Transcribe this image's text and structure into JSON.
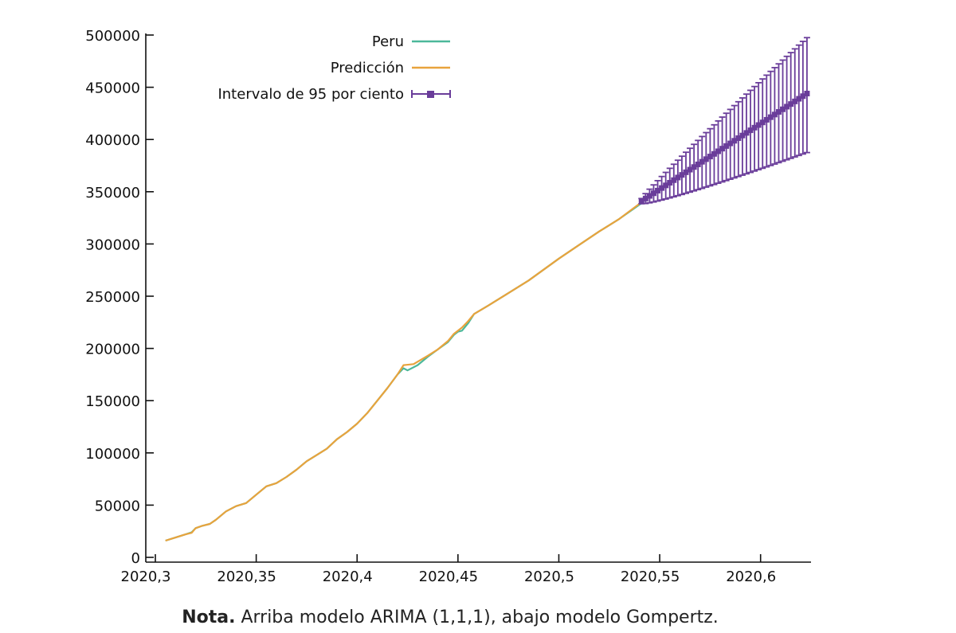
{
  "chart_data": {
    "type": "line",
    "title": "",
    "xlabel": "",
    "ylabel": "",
    "xlim": [
      2020.3,
      2020.625
    ],
    "ylim": [
      0,
      500000
    ],
    "x_ticks": [
      2020.3,
      2020.35,
      2020.4,
      2020.45,
      2020.5,
      2020.55,
      2020.6
    ],
    "x_tick_labels": [
      "2020,3",
      "2020,35",
      "2020,4",
      "2020,45",
      "2020,5",
      "2020,55",
      "2020,6"
    ],
    "y_ticks": [
      0,
      50000,
      100000,
      150000,
      200000,
      250000,
      300000,
      350000,
      400000,
      450000,
      500000
    ],
    "y_tick_labels": [
      "0",
      "50000",
      "100000",
      "150000",
      "200000",
      "250000",
      "300000",
      "350000",
      "400000",
      "450000",
      "500000"
    ],
    "legend_position": "top-center",
    "series": [
      {
        "name": "Peru",
        "color": "#4cb89a",
        "style": "line",
        "points": [
          [
            2020.305,
            16000
          ],
          [
            2020.31,
            19000
          ],
          [
            2020.315,
            22000
          ],
          [
            2020.318,
            24000
          ],
          [
            2020.32,
            28000
          ],
          [
            2020.323,
            30000
          ],
          [
            2020.327,
            32000
          ],
          [
            2020.33,
            36000
          ],
          [
            2020.335,
            44000
          ],
          [
            2020.34,
            49000
          ],
          [
            2020.345,
            52000
          ],
          [
            2020.35,
            60000
          ],
          [
            2020.355,
            68000
          ],
          [
            2020.36,
            71000
          ],
          [
            2020.365,
            77000
          ],
          [
            2020.37,
            84000
          ],
          [
            2020.375,
            92000
          ],
          [
            2020.38,
            98000
          ],
          [
            2020.385,
            104000
          ],
          [
            2020.39,
            113000
          ],
          [
            2020.395,
            120000
          ],
          [
            2020.4,
            128000
          ],
          [
            2020.405,
            138000
          ],
          [
            2020.41,
            150000
          ],
          [
            2020.415,
            162000
          ],
          [
            2020.42,
            175000
          ],
          [
            2020.423,
            181000
          ],
          [
            2020.425,
            179000
          ],
          [
            2020.43,
            184000
          ],
          [
            2020.435,
            192000
          ],
          [
            2020.44,
            199000
          ],
          [
            2020.445,
            206000
          ],
          [
            2020.448,
            213000
          ],
          [
            2020.45,
            216000
          ],
          [
            2020.452,
            217000
          ],
          [
            2020.455,
            224000
          ],
          [
            2020.458,
            233000
          ],
          [
            2020.465,
            241000
          ],
          [
            2020.475,
            253000
          ],
          [
            2020.485,
            265000
          ],
          [
            2020.5,
            286000
          ],
          [
            2020.51,
            299000
          ],
          [
            2020.52,
            312000
          ],
          [
            2020.53,
            324000
          ],
          [
            2020.541,
            339000
          ]
        ]
      },
      {
        "name": "Predicción",
        "color": "#e8a33d",
        "style": "line",
        "points": [
          [
            2020.305,
            16000
          ],
          [
            2020.31,
            19000
          ],
          [
            2020.315,
            22000
          ],
          [
            2020.318,
            23500
          ],
          [
            2020.32,
            28000
          ],
          [
            2020.323,
            30000
          ],
          [
            2020.327,
            32000
          ],
          [
            2020.33,
            36000
          ],
          [
            2020.335,
            44000
          ],
          [
            2020.34,
            49000
          ],
          [
            2020.345,
            52000
          ],
          [
            2020.35,
            60000
          ],
          [
            2020.355,
            68000
          ],
          [
            2020.36,
            71000
          ],
          [
            2020.365,
            77000
          ],
          [
            2020.37,
            84000
          ],
          [
            2020.375,
            92000
          ],
          [
            2020.38,
            98000
          ],
          [
            2020.385,
            104000
          ],
          [
            2020.39,
            113000
          ],
          [
            2020.395,
            120000
          ],
          [
            2020.4,
            128000
          ],
          [
            2020.405,
            138000
          ],
          [
            2020.41,
            150000
          ],
          [
            2020.415,
            162000
          ],
          [
            2020.42,
            175000
          ],
          [
            2020.423,
            184000
          ],
          [
            2020.428,
            185000
          ],
          [
            2020.435,
            193000
          ],
          [
            2020.44,
            199000
          ],
          [
            2020.445,
            207000
          ],
          [
            2020.448,
            214000
          ],
          [
            2020.452,
            220000
          ],
          [
            2020.455,
            226000
          ],
          [
            2020.458,
            233000
          ],
          [
            2020.465,
            241000
          ],
          [
            2020.475,
            253000
          ],
          [
            2020.485,
            265000
          ],
          [
            2020.5,
            286000
          ],
          [
            2020.51,
            299000
          ],
          [
            2020.52,
            312000
          ],
          [
            2020.53,
            324000
          ],
          [
            2020.541,
            340000
          ]
        ]
      },
      {
        "name": "Intervalo de 95 por ciento",
        "color": "#6a3d9a",
        "style": "errorbars",
        "x_start": 2020.541,
        "x_step": 0.002,
        "count": 42,
        "y_start": 341000,
        "y_end": 444000,
        "low_end": 390000,
        "high_end": 495000
      }
    ]
  },
  "note": {
    "bold": "Nota.",
    "text": " Arriba modelo ARIMA (1,1,1), abajo modelo Gompertz."
  }
}
